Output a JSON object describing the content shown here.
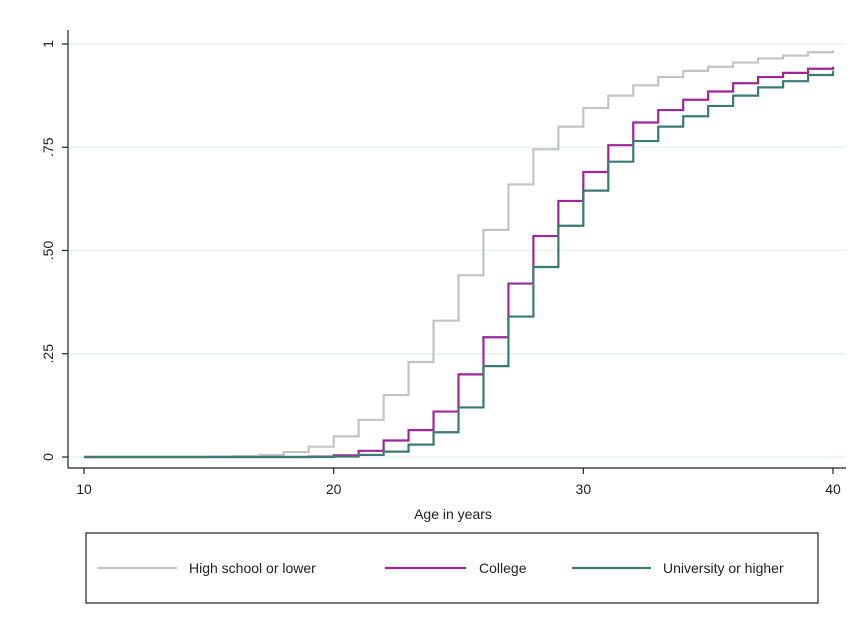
{
  "chart_data": {
    "type": "line",
    "step": true,
    "xlabel": "Age in years",
    "ylabel": "",
    "xlim": [
      10,
      40
    ],
    "ylim": [
      0,
      1
    ],
    "x_ticks": [
      10,
      20,
      30,
      40
    ],
    "x_tick_labels": [
      "10",
      "20",
      "30",
      "40"
    ],
    "y_ticks": [
      0,
      0.25,
      0.5,
      0.75,
      1
    ],
    "y_tick_labels": [
      "0",
      ".25",
      ".50",
      ".75",
      "1"
    ],
    "grid": "horizontal",
    "legend_position": "bottom",
    "x": [
      10,
      11,
      12,
      13,
      14,
      15,
      16,
      17,
      18,
      19,
      20,
      21,
      22,
      23,
      24,
      25,
      26,
      27,
      28,
      29,
      30,
      31,
      32,
      33,
      34,
      35,
      36,
      37,
      38,
      39,
      40
    ],
    "series": [
      {
        "name": "High school or lower",
        "color": "#c4c4c4",
        "values": [
          0,
          0,
          0,
          0,
          0,
          0.001,
          0.002,
          0.005,
          0.012,
          0.025,
          0.05,
          0.09,
          0.15,
          0.23,
          0.33,
          0.44,
          0.55,
          0.66,
          0.745,
          0.8,
          0.845,
          0.875,
          0.9,
          0.92,
          0.935,
          0.945,
          0.955,
          0.965,
          0.972,
          0.98,
          0.985
        ]
      },
      {
        "name": "College",
        "color": "#a0269a",
        "values": [
          0,
          0,
          0,
          0,
          0,
          0,
          0,
          0,
          0,
          0.001,
          0.004,
          0.015,
          0.04,
          0.065,
          0.11,
          0.2,
          0.29,
          0.42,
          0.535,
          0.62,
          0.69,
          0.755,
          0.81,
          0.84,
          0.865,
          0.885,
          0.905,
          0.92,
          0.93,
          0.94,
          0.945
        ]
      },
      {
        "name": "University or higher",
        "color": "#3d7a73",
        "values": [
          0,
          0,
          0,
          0,
          0,
          0,
          0,
          0,
          0,
          0,
          0.001,
          0.005,
          0.013,
          0.03,
          0.06,
          0.12,
          0.22,
          0.34,
          0.46,
          0.56,
          0.645,
          0.715,
          0.765,
          0.8,
          0.825,
          0.85,
          0.875,
          0.895,
          0.91,
          0.925,
          0.935
        ]
      }
    ]
  }
}
